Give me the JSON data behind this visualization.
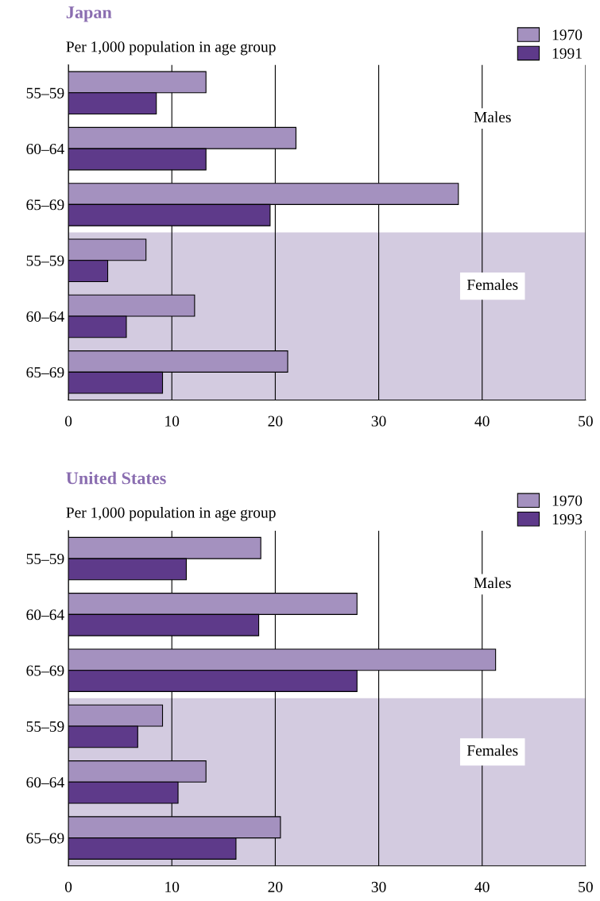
{
  "chart_data": [
    {
      "type": "bar",
      "orientation": "horizontal",
      "title": "Japan",
      "subtitle": "Per 1,000 population in age group",
      "categories": [
        "55–59",
        "60–64",
        "65–69",
        "55–59",
        "60–64",
        "65–69"
      ],
      "series": [
        {
          "name": "1970",
          "color": "#a491bf",
          "values": [
            13.3,
            22.0,
            37.7,
            7.5,
            12.2,
            21.2
          ]
        },
        {
          "name": "1991",
          "color": "#5e3a8a",
          "values": [
            8.5,
            13.3,
            19.5,
            3.8,
            5.6,
            9.1
          ]
        }
      ],
      "xlim": [
        0,
        50
      ],
      "xticks": [
        0,
        10,
        20,
        30,
        40,
        50
      ],
      "grid": "x",
      "legend": "top right",
      "annotations": [
        "Males",
        "Females"
      ]
    },
    {
      "type": "bar",
      "orientation": "horizontal",
      "title": "United States",
      "subtitle": "Per 1,000 population in age group",
      "categories": [
        "55–59",
        "60–64",
        "65–69",
        "55–59",
        "60–64",
        "65–69"
      ],
      "series": [
        {
          "name": "1970",
          "color": "#a491bf",
          "values": [
            18.6,
            27.9,
            41.3,
            9.1,
            13.3,
            20.5
          ]
        },
        {
          "name": "1993",
          "color": "#5e3a8a",
          "values": [
            11.4,
            18.4,
            27.9,
            6.7,
            10.6,
            16.2
          ]
        }
      ],
      "xlim": [
        0,
        50
      ],
      "xticks": [
        0,
        10,
        20,
        30,
        40,
        50
      ],
      "grid": "x",
      "legend": "top right",
      "annotations": [
        "Males",
        "Females"
      ]
    }
  ]
}
